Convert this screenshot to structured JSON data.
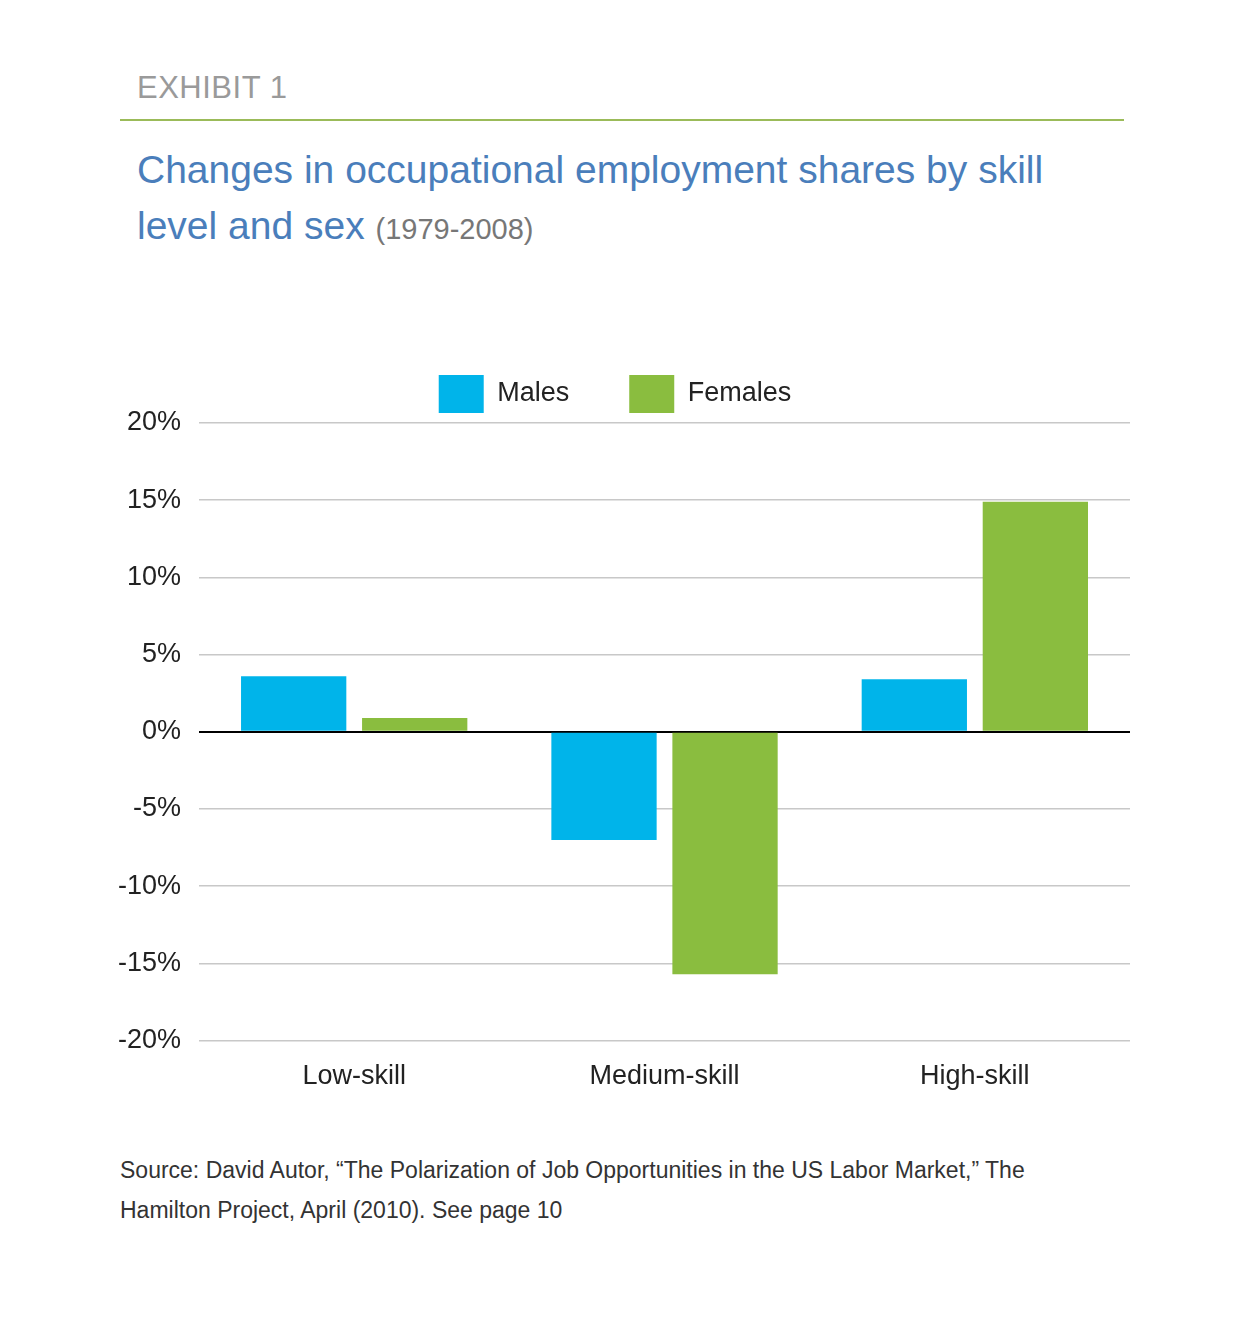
{
  "chart_data": {
    "type": "bar",
    "header": "EXHIBIT 1",
    "title": "Changes in occupational employment shares by skill level and sex",
    "subtitle": "(1979-2008)",
    "source": "Source: David Autor, “The Polarization of Job Opportunities in the US Labor Market,” The Hamilton Project, April (2010). See page 10",
    "categories": [
      "Low-skill",
      "Medium-skill",
      "High-skill"
    ],
    "series": [
      {
        "name": "Males",
        "color": "#00b4ea",
        "values": [
          3.6,
          -7.0,
          3.4
        ]
      },
      {
        "name": "Females",
        "color": "#8abd3f",
        "values": [
          0.9,
          -15.7,
          14.9
        ]
      }
    ],
    "ylim": [
      -20,
      20
    ],
    "yticks": [
      {
        "value": -20,
        "label": "-20%"
      },
      {
        "value": -15,
        "label": "-15%"
      },
      {
        "value": -10,
        "label": "-10%"
      },
      {
        "value": -5,
        "label": "-5%"
      },
      {
        "value": 0,
        "label": "0%"
      },
      {
        "value": 5,
        "label": "5%"
      },
      {
        "value": 10,
        "label": "10%"
      },
      {
        "value": 15,
        "label": "15%"
      },
      {
        "value": 20,
        "label": "20%"
      }
    ],
    "grid": true,
    "legend": "top"
  }
}
